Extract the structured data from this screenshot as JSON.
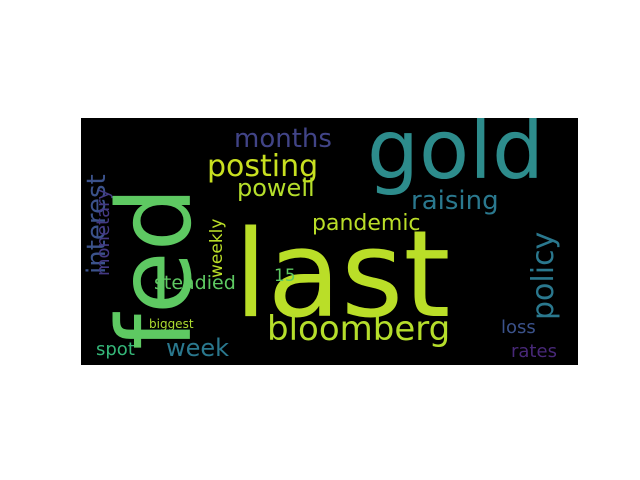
{
  "words": {
    "last": {
      "text": "last",
      "color": "#bade28"
    },
    "gold": {
      "text": "gold",
      "color": "#2d8c8c"
    },
    "fed": {
      "text": "fed",
      "color": "#5ec962"
    },
    "bloomberg": {
      "text": "bloomberg",
      "color": "#b5de2b"
    },
    "posting": {
      "text": "posting",
      "color": "#c8e020"
    },
    "months": {
      "text": "months",
      "color": "#414487"
    },
    "raising": {
      "text": "raising",
      "color": "#2a788e"
    },
    "policy": {
      "text": "policy",
      "color": "#2a788e"
    },
    "powell": {
      "text": "powell",
      "color": "#b5de2b"
    },
    "pandemic": {
      "text": "pandemic",
      "color": "#bade28"
    },
    "interest": {
      "text": "interest",
      "color": "#3b528b"
    },
    "week": {
      "text": "week",
      "color": "#2a788e"
    },
    "steadied": {
      "text": "steadied",
      "color": "#5ec962"
    },
    "monetary": {
      "text": "monetary",
      "color": "#443983"
    },
    "weekly": {
      "text": "weekly",
      "color": "#bade28"
    },
    "n15": {
      "text": "15",
      "color": "#5ec962"
    },
    "loss": {
      "text": "loss",
      "color": "#3b528b"
    },
    "rates": {
      "text": "rates",
      "color": "#482878"
    },
    "spot": {
      "text": "spot",
      "color": "#35b779"
    },
    "biggest": {
      "text": "biggest",
      "color": "#addc30"
    }
  }
}
